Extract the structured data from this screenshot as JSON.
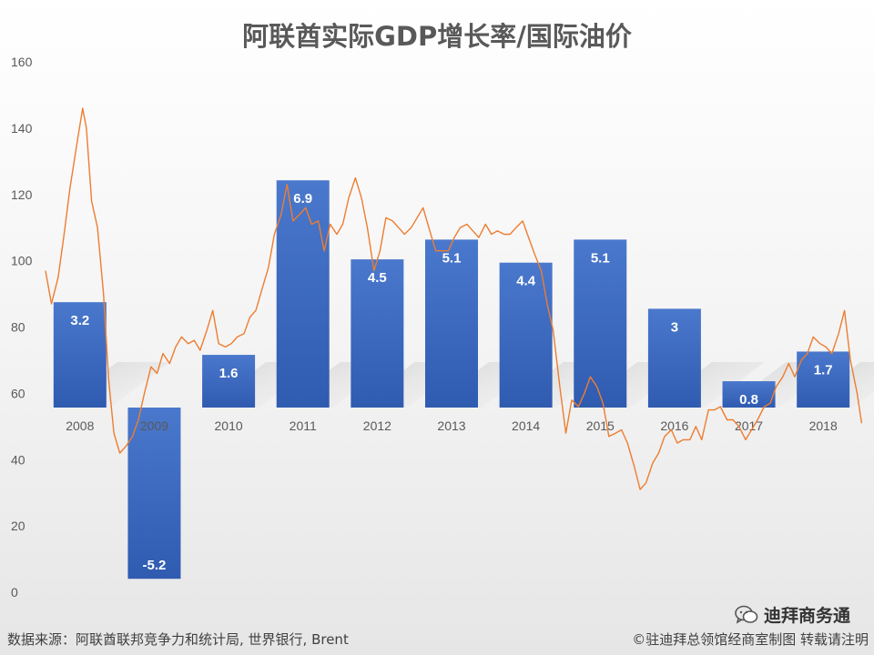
{
  "chart_data": {
    "type": "bar+line",
    "title": "阿联酋实际GDP增长率/国际油价",
    "categories": [
      "2008",
      "2009",
      "2010",
      "2011",
      "2012",
      "2013",
      "2014",
      "2015",
      "2016",
      "2017",
      "2018"
    ],
    "y_axis": {
      "ticks": [
        0,
        20,
        40,
        60,
        80,
        100,
        120,
        140,
        160
      ],
      "ylim": [
        0,
        160
      ]
    },
    "series": [
      {
        "kind": "bar",
        "values": [
          3.2,
          -5.2,
          1.6,
          6.9,
          4.5,
          5.1,
          4.4,
          5.1,
          3,
          0.8,
          1.7
        ],
        "data_labels": [
          "3.2",
          "-5.2",
          "1.6",
          "6.9",
          "4.5",
          "5.1",
          "4.4",
          "5.1",
          "3",
          "0.8",
          "1.7"
        ],
        "color": "#4472C4"
      },
      {
        "kind": "line",
        "color": "#ED7D31",
        "points": [
          [
            2008.0,
            97
          ],
          [
            2008.08,
            87
          ],
          [
            2008.17,
            95
          ],
          [
            2008.25,
            108
          ],
          [
            2008.33,
            122
          ],
          [
            2008.42,
            135
          ],
          [
            2008.5,
            146
          ],
          [
            2008.55,
            140
          ],
          [
            2008.62,
            118
          ],
          [
            2008.7,
            110
          ],
          [
            2008.78,
            90
          ],
          [
            2008.85,
            64
          ],
          [
            2008.92,
            48
          ],
          [
            2009.0,
            42
          ],
          [
            2009.08,
            44
          ],
          [
            2009.17,
            47
          ],
          [
            2009.25,
            52
          ],
          [
            2009.33,
            60
          ],
          [
            2009.42,
            68
          ],
          [
            2009.5,
            66
          ],
          [
            2009.58,
            72
          ],
          [
            2009.67,
            69
          ],
          [
            2009.75,
            74
          ],
          [
            2009.83,
            77
          ],
          [
            2009.92,
            75
          ],
          [
            2010.0,
            76
          ],
          [
            2010.08,
            73
          ],
          [
            2010.17,
            79
          ],
          [
            2010.25,
            85
          ],
          [
            2010.33,
            75
          ],
          [
            2010.42,
            74
          ],
          [
            2010.5,
            75
          ],
          [
            2010.58,
            77
          ],
          [
            2010.67,
            78
          ],
          [
            2010.75,
            83
          ],
          [
            2010.83,
            85
          ],
          [
            2010.92,
            92
          ],
          [
            2011.0,
            98
          ],
          [
            2011.08,
            108
          ],
          [
            2011.17,
            114
          ],
          [
            2011.25,
            123
          ],
          [
            2011.33,
            112
          ],
          [
            2011.42,
            114
          ],
          [
            2011.5,
            116
          ],
          [
            2011.58,
            111
          ],
          [
            2011.67,
            112
          ],
          [
            2011.75,
            103
          ],
          [
            2011.83,
            111
          ],
          [
            2011.92,
            108
          ],
          [
            2012.0,
            111
          ],
          [
            2012.08,
            119
          ],
          [
            2012.17,
            125
          ],
          [
            2012.25,
            119
          ],
          [
            2012.33,
            110
          ],
          [
            2012.42,
            97
          ],
          [
            2012.5,
            103
          ],
          [
            2012.58,
            113
          ],
          [
            2012.67,
            112
          ],
          [
            2012.75,
            110
          ],
          [
            2012.83,
            108
          ],
          [
            2012.92,
            110
          ],
          [
            2013.0,
            113
          ],
          [
            2013.08,
            116
          ],
          [
            2013.17,
            109
          ],
          [
            2013.25,
            103
          ],
          [
            2013.33,
            103
          ],
          [
            2013.42,
            103
          ],
          [
            2013.5,
            107
          ],
          [
            2013.58,
            110
          ],
          [
            2013.67,
            111
          ],
          [
            2013.75,
            109
          ],
          [
            2013.83,
            107
          ],
          [
            2013.92,
            111
          ],
          [
            2014.0,
            108
          ],
          [
            2014.08,
            109
          ],
          [
            2014.17,
            108
          ],
          [
            2014.25,
            108
          ],
          [
            2014.33,
            110
          ],
          [
            2014.42,
            112
          ],
          [
            2014.5,
            107
          ],
          [
            2014.58,
            102
          ],
          [
            2014.67,
            97
          ],
          [
            2014.75,
            87
          ],
          [
            2014.83,
            79
          ],
          [
            2014.92,
            62
          ],
          [
            2015.0,
            48
          ],
          [
            2015.08,
            58
          ],
          [
            2015.17,
            56
          ],
          [
            2015.25,
            60
          ],
          [
            2015.33,
            65
          ],
          [
            2015.42,
            62
          ],
          [
            2015.5,
            57
          ],
          [
            2015.58,
            47
          ],
          [
            2015.67,
            48
          ],
          [
            2015.75,
            49
          ],
          [
            2015.83,
            45
          ],
          [
            2015.92,
            38
          ],
          [
            2016.0,
            31
          ],
          [
            2016.08,
            33
          ],
          [
            2016.17,
            39
          ],
          [
            2016.25,
            42
          ],
          [
            2016.33,
            47
          ],
          [
            2016.42,
            49
          ],
          [
            2016.5,
            45
          ],
          [
            2016.58,
            46
          ],
          [
            2016.67,
            46
          ],
          [
            2016.75,
            50
          ],
          [
            2016.83,
            46
          ],
          [
            2016.92,
            55
          ],
          [
            2017.0,
            55
          ],
          [
            2017.08,
            56
          ],
          [
            2017.17,
            52
          ],
          [
            2017.25,
            52
          ],
          [
            2017.33,
            50
          ],
          [
            2017.42,
            46
          ],
          [
            2017.5,
            49
          ],
          [
            2017.58,
            52
          ],
          [
            2017.67,
            56
          ],
          [
            2017.75,
            57
          ],
          [
            2017.83,
            62
          ],
          [
            2017.92,
            65
          ],
          [
            2018.0,
            69
          ],
          [
            2018.08,
            65
          ],
          [
            2018.17,
            70
          ],
          [
            2018.25,
            72
          ],
          [
            2018.33,
            77
          ],
          [
            2018.42,
            75
          ],
          [
            2018.5,
            74
          ],
          [
            2018.58,
            72
          ],
          [
            2018.67,
            78
          ],
          [
            2018.75,
            85
          ],
          [
            2018.83,
            70
          ],
          [
            2018.92,
            60
          ],
          [
            2018.98,
            51
          ]
        ]
      }
    ]
  },
  "footer": {
    "source": "数据来源：阿联酋联邦竞争力和统计局, 世界银行, Brent",
    "credit": "©驻迪拜总领馆经商室制图 转载请注明"
  },
  "watermark": {
    "text": "迪拜商务通",
    "icon": "wechat-icon"
  }
}
